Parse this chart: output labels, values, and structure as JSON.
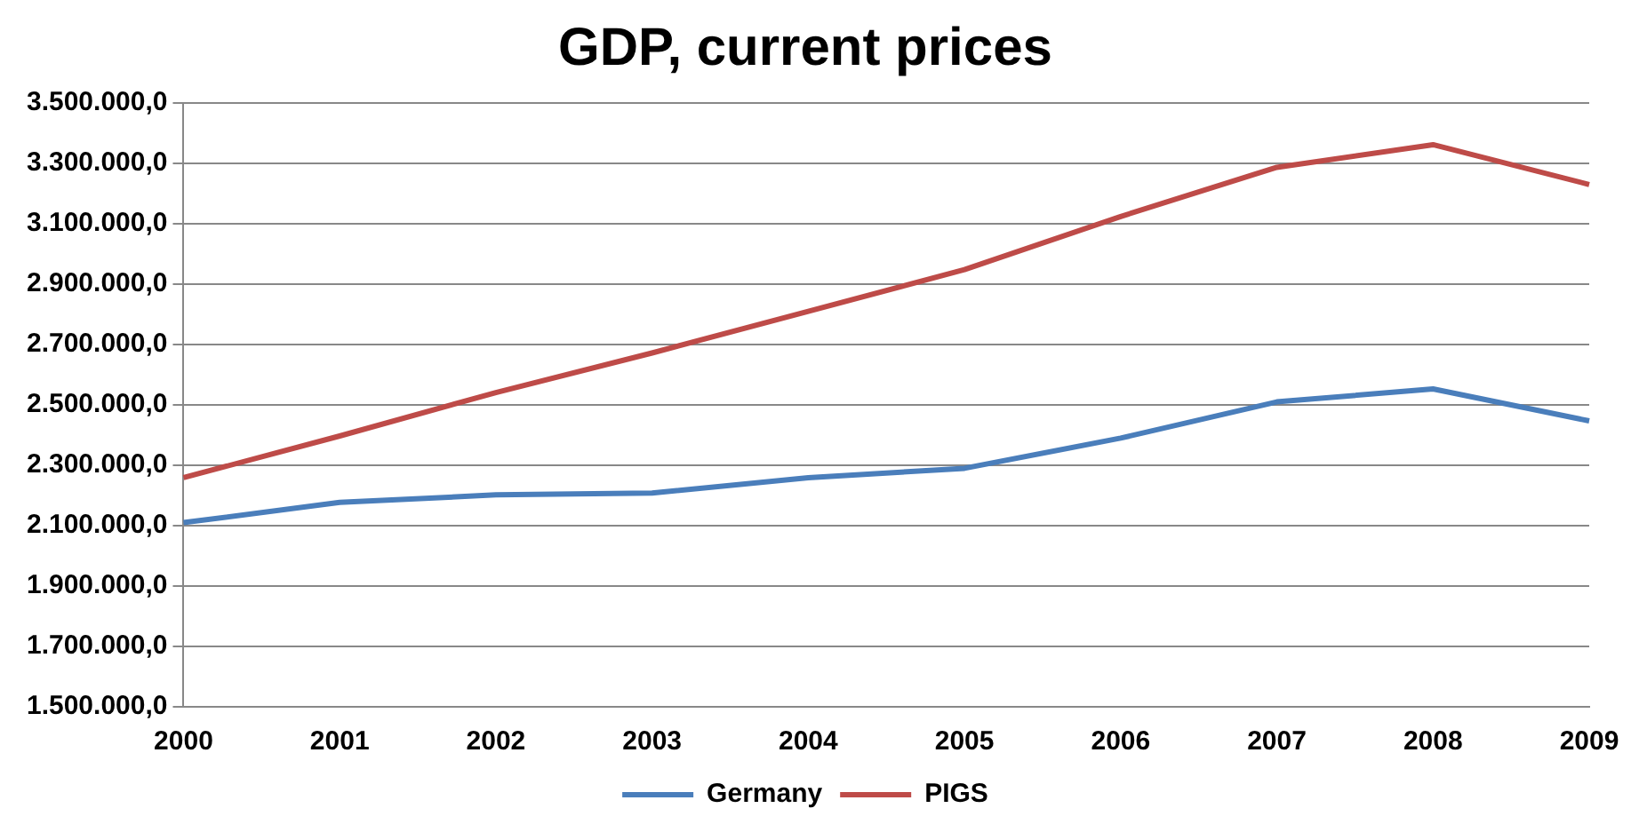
{
  "chart_data": {
    "type": "line",
    "title": "GDP, current prices",
    "categories": [
      "2000",
      "2001",
      "2002",
      "2003",
      "2004",
      "2005",
      "2006",
      "2007",
      "2008",
      "2009"
    ],
    "series": [
      {
        "name": "Germany",
        "color": "#4a7ebb",
        "values": [
          2110000,
          2177000,
          2202000,
          2208000,
          2259000,
          2290000,
          2390000,
          2510000,
          2553000,
          2447000
        ]
      },
      {
        "name": "PIGS",
        "color": "#be4b48",
        "values": [
          2259000,
          2397000,
          2541000,
          2672000,
          2810000,
          2948000,
          3124000,
          3287000,
          3362000,
          3230000
        ]
      }
    ],
    "ylim": [
      1500000,
      3500000
    ],
    "yticks": [
      {
        "value": 1500000,
        "label": "1.500.000,0"
      },
      {
        "value": 1700000,
        "label": "1.700.000,0"
      },
      {
        "value": 1900000,
        "label": "1.900.000,0"
      },
      {
        "value": 2100000,
        "label": "2.100.000,0"
      },
      {
        "value": 2300000,
        "label": "2.300.000,0"
      },
      {
        "value": 2500000,
        "label": "2.500.000,0"
      },
      {
        "value": 2700000,
        "label": "2.700.000,0"
      },
      {
        "value": 2900000,
        "label": "2.900.000,0"
      },
      {
        "value": 3100000,
        "label": "3.100.000,0"
      },
      {
        "value": 3300000,
        "label": "3.300.000,0"
      },
      {
        "value": 3500000,
        "label": "3.500.000,0"
      }
    ],
    "grid": "y",
    "legend": "bottom",
    "marker": "none",
    "line_style": "solid"
  }
}
